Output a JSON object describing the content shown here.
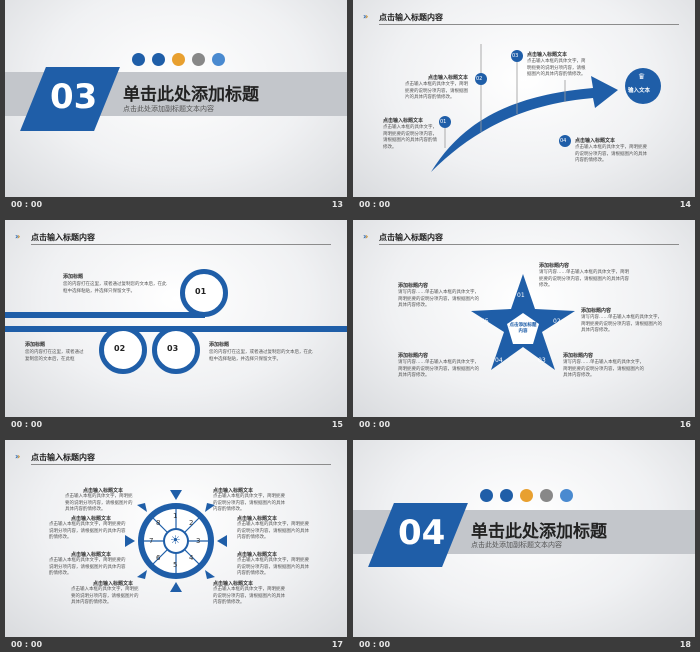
{
  "footer": {
    "time": "00 : 00"
  },
  "slides": [
    {
      "page": "13",
      "number": "03",
      "title": "单击此处添加标题",
      "subtitle": "点击此处添加副标题文本内容"
    },
    {
      "page": "14",
      "title": "点击输入标题内容",
      "arrow_label": "输入文本",
      "items": [
        {
          "num": "01",
          "head": "点击输入标题文本",
          "body": "点击输入本框的具体文字，简明扼要的说明分项内容，请根据图片的具体内容酌情修改。"
        },
        {
          "num": "02",
          "head": "点击输入标题文本",
          "body": "点击输入本框的具体文字，简明扼要的说明分项内容，请根据图片的具体内容酌情修改。"
        },
        {
          "num": "03",
          "head": "点击输入标题文本",
          "body": "点击输入本框的具体文字，简明扼要的说明分项内容，请根据图片的具体内容酌情修改。"
        },
        {
          "num": "04",
          "head": "点击输入标题文本",
          "body": "点击输入本框的具体文字，简明扼要的说明分项内容，请根据图片的具体内容酌情修改。"
        }
      ]
    },
    {
      "page": "15",
      "title": "点击输入标题内容",
      "items": [
        {
          "num": "01",
          "head": "添加标题",
          "body": "您的内容打在这里，或者通过复制您的文本后，在此框中选择粘贴，并选择只保留文字。"
        },
        {
          "num": "02",
          "head": "添加标题",
          "body": "您的内容打在这里，或者通过复制您的文本后，在此框"
        },
        {
          "num": "03",
          "head": "添加标题",
          "body": "您的内容打在这里，或者通过复制您的文本后，在此框中选择粘贴，并选择只保留文字。"
        }
      ]
    },
    {
      "page": "16",
      "title": "点击输入标题内容",
      "center": "点击添加标题内容",
      "points": [
        "01",
        "02",
        "03",
        "04",
        "05"
      ],
      "items": [
        {
          "head": "添加标题内容",
          "body": "请写内容……单击输入本框的具体文字，简明扼要的说明分项内容，请根据图片的具体内容修改。"
        },
        {
          "head": "添加标题内容",
          "body": "请写内容……单击输入本框的具体文字，简明扼要的说明分项内容，请根据图片的具体内容修改。"
        },
        {
          "head": "添加标题内容",
          "body": "请写内容……单击输入本框的具体文字，简明扼要的说明分项内容，请根据图片的具体内容修改。"
        },
        {
          "head": "添加标题内容",
          "body": "请写内容……单击输入本框的具体文字，简明扼要的说明分项内容，请根据图片的具体内容修改。"
        },
        {
          "head": "添加标题内容",
          "body": "请写内容……单击输入本框的具体文字，简明扼要的说明分项内容，请根据图片的具体内容修改。"
        }
      ]
    },
    {
      "page": "17",
      "title": "点击输入标题内容",
      "segments": [
        "1",
        "2",
        "3",
        "4",
        "5",
        "6",
        "7",
        "8"
      ],
      "item": {
        "head": "点击输入标题文本",
        "body": "点击输入本框的具体文字，简明扼要的说明分项内容，请根据图片的具体内容酌情修改。"
      }
    },
    {
      "page": "18",
      "number": "04",
      "title": "单击此处添加标题",
      "subtitle": "点击此处添加副标题文本内容"
    }
  ],
  "colors": {
    "blue": "#1f5ea8",
    "gray_band": "#c3c6cb",
    "orange": "#e8a030",
    "footer": "#3b3b3b"
  },
  "icons": [
    "bar-chart-icon",
    "pie-chart-icon",
    "search-icon",
    "document-icon",
    "calendar-icon"
  ],
  "trophy_icon": "trophy-icon",
  "bulb_icon": "lightbulb-icon"
}
